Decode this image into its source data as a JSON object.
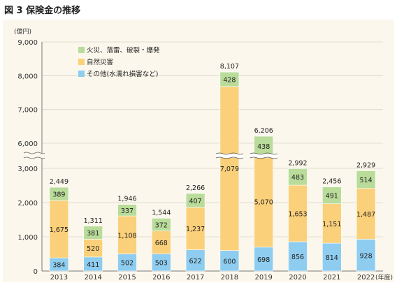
{
  "figure_title": "図 3 保険金の推移",
  "chart_data": {
    "type": "bar",
    "stacked": true,
    "y_unit": "(億円)",
    "x_unit": "(年度)",
    "categories": [
      "2013",
      "2014",
      "2015",
      "2016",
      "2017",
      "2018",
      "2019",
      "2020",
      "2021",
      "2022"
    ],
    "series": [
      {
        "name": "その他(水濡れ損害など)",
        "color": "#8ecdf0",
        "values": [
          384,
          411,
          502,
          503,
          622,
          600,
          698,
          856,
          814,
          928
        ]
      },
      {
        "name": "自然災害",
        "color": "#fbd07a",
        "values": [
          1675,
          520,
          1108,
          668,
          1237,
          7079,
          5070,
          1653,
          1151,
          1487
        ]
      },
      {
        "name": "火災、落雷、破裂・爆発",
        "color": "#b9dc9a",
        "values": [
          389,
          381,
          337,
          372,
          407,
          428,
          438,
          483,
          491,
          514
        ]
      }
    ],
    "totals": [
      2449,
      1311,
      1946,
      1544,
      2266,
      8107,
      6206,
      2992,
      2456,
      2929
    ],
    "value_labels": [
      [
        "384",
        "1,675",
        "389"
      ],
      [
        "411",
        "520",
        "381"
      ],
      [
        "502",
        "1,108",
        "337"
      ],
      [
        "503",
        "668",
        "372"
      ],
      [
        "622",
        "1,237",
        "407"
      ],
      [
        "600",
        "7,079",
        "428"
      ],
      [
        "698",
        "5,070",
        "438"
      ],
      [
        "856",
        "1,653",
        "483"
      ],
      [
        "814",
        "1,151",
        "491"
      ],
      [
        "928",
        "1,487",
        "514"
      ]
    ],
    "total_labels": [
      "2,449",
      "1,311",
      "1,946",
      "1,544",
      "2,266",
      "8,107",
      "6,206",
      "2,992",
      "2,456",
      "2,929"
    ],
    "y_ticks_lower": [
      0,
      1000,
      2000,
      3000
    ],
    "y_ticks_upper": [
      6000,
      7000,
      8000,
      9000
    ],
    "y_tick_labels_lower": [
      "0",
      "1,000",
      "2,000",
      "3,000"
    ],
    "y_tick_labels_upper": [
      "6,000",
      "7,000",
      "8,000",
      "9,000"
    ],
    "axis_break": [
      3000,
      6000
    ],
    "legend_order": [
      2,
      1,
      0
    ],
    "legend_placement": "top-left"
  }
}
